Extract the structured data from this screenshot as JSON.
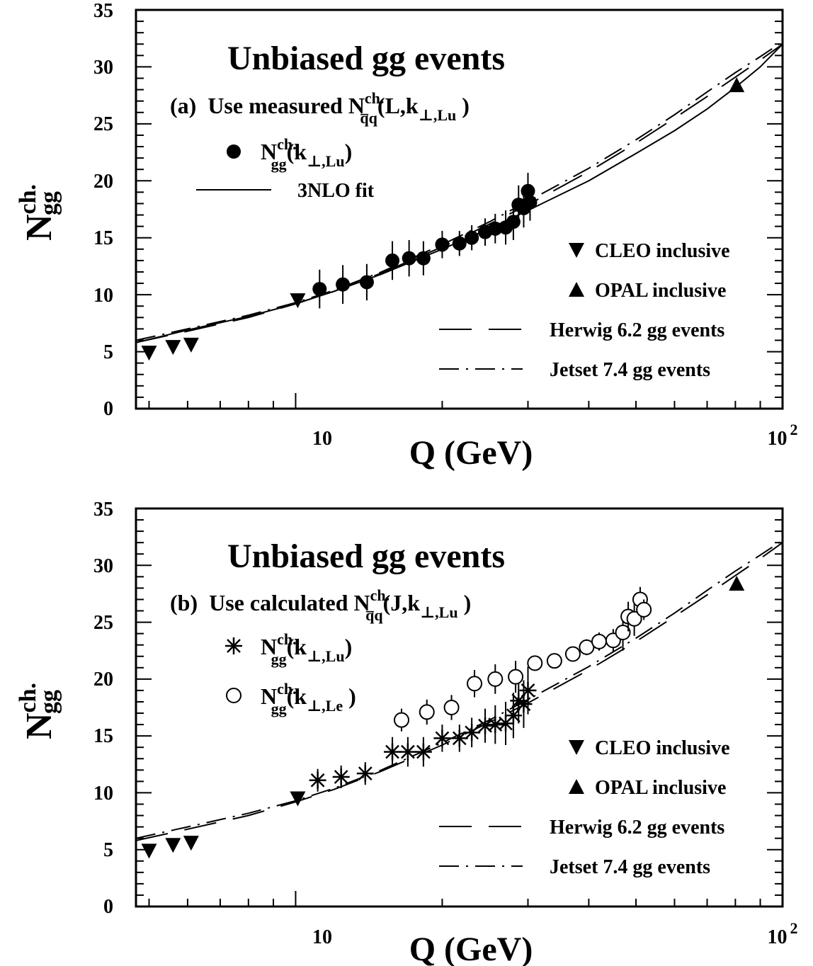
{
  "chart_data": [
    {
      "type": "scatter",
      "panel_label": "(a)",
      "title": "Unbiased gg events",
      "subtitle": {
        "pre": "Use measured N",
        "sup": "ch.",
        "sub": "q̅q",
        "post": "(L,k",
        "sub2": "⊥,Lu",
        "close": " )"
      },
      "xlabel": "Q (GeV)",
      "ylabel": {
        "base": "N",
        "sup": "ch.",
        "sub": "gg"
      },
      "xscale": "log",
      "xlim": [
        4.7,
        100
      ],
      "ylim": [
        0,
        35
      ],
      "x_ticklabels": [
        {
          "x": 10,
          "label": "10"
        },
        {
          "x": 100,
          "label": "10",
          "exp": "2"
        }
      ],
      "y_ticklabels": [
        "0",
        "5",
        "10",
        "15",
        "20",
        "25",
        "30",
        "35"
      ],
      "grid": false,
      "series": [
        {
          "name": "N_gg(k_T,Lu)",
          "marker": "filled-circle",
          "legend": {
            "base": "N",
            "sup": "ch.",
            "sub": "gg",
            "post": "(k",
            "sub2": "⊥,Lu",
            "close": ")"
          },
          "x": [
            11.2,
            12.5,
            14.0,
            15.8,
            17.1,
            18.3,
            20.0,
            21.7,
            23.0,
            24.5,
            25.7,
            27.0,
            28.0,
            28.7,
            29.4,
            30.0,
            30.3
          ],
          "y": [
            10.5,
            10.9,
            11.1,
            13.0,
            13.2,
            13.2,
            14.4,
            14.5,
            15.0,
            15.5,
            15.8,
            15.9,
            16.4,
            17.9,
            17.6,
            19.1,
            18.1
          ],
          "yerr": [
            1.7,
            1.7,
            1.6,
            1.7,
            1.6,
            1.5,
            1.2,
            1.1,
            1.1,
            1.2,
            1.3,
            1.5,
            1.6,
            1.7,
            1.7,
            1.6,
            1.6
          ]
        },
        {
          "name": "CLEO inclusive",
          "marker": "filled-triangle-down",
          "x": [
            5.0,
            5.6,
            6.1,
            10.1
          ],
          "y": [
            4.9,
            5.4,
            5.6,
            9.5
          ]
        },
        {
          "name": "OPAL inclusive",
          "marker": "filled-triangle-up",
          "x": [
            80.5
          ],
          "y": [
            28.4
          ]
        }
      ],
      "curves": [
        {
          "name": "3NLO fit",
          "style": "solid",
          "x": [
            4.7,
            6,
            8,
            10,
            12,
            15,
            20,
            25,
            30,
            40,
            50,
            60,
            70,
            80,
            90,
            100
          ],
          "y": [
            5.8,
            6.9,
            8.1,
            9.2,
            10.3,
            11.8,
            14.0,
            15.8,
            17.4,
            20.0,
            22.4,
            24.4,
            26.3,
            28.2,
            30.0,
            32.0
          ]
        },
        {
          "name": "Herwig 6.2 gg events",
          "style": "dashed",
          "x": [
            4.7,
            6,
            8,
            10,
            12,
            15,
            20,
            25,
            30,
            40,
            50,
            60,
            70,
            80,
            90,
            100
          ],
          "y": [
            5.8,
            6.8,
            8.0,
            9.2,
            10.3,
            11.9,
            14.2,
            16.2,
            17.9,
            20.8,
            23.3,
            25.5,
            27.4,
            29.1,
            30.6,
            32.0
          ]
        },
        {
          "name": "Jetset 7.4 gg events",
          "style": "dash-dot",
          "x": [
            4.7,
            6,
            8,
            10,
            12,
            15,
            20,
            25,
            30,
            40,
            50,
            60,
            70,
            80,
            90,
            100
          ],
          "y": [
            6.0,
            7.0,
            8.2,
            9.3,
            10.4,
            12.0,
            14.4,
            16.4,
            18.2,
            21.1,
            23.6,
            25.8,
            27.8,
            29.5,
            30.9,
            32.2
          ]
        }
      ],
      "legend_entries": [
        "3NLO fit",
        "CLEO inclusive",
        "OPAL inclusive",
        "Herwig 6.2 gg events",
        "Jetset 7.4 gg events"
      ]
    },
    {
      "type": "scatter",
      "panel_label": "(b)",
      "title": "Unbiased gg events",
      "subtitle": {
        "pre": "Use calculated N",
        "sup": "ch.",
        "sub": "q̅q",
        "post": "(J,k",
        "sub2": "⊥,Lu",
        "close": " )"
      },
      "xlabel": "Q (GeV)",
      "ylabel": {
        "base": "N",
        "sup": "ch.",
        "sub": "gg"
      },
      "xscale": "log",
      "xlim": [
        4.7,
        100
      ],
      "ylim": [
        0,
        35
      ],
      "x_ticklabels": [
        {
          "x": 10,
          "label": "10"
        },
        {
          "x": 100,
          "label": "10",
          "exp": "2"
        }
      ],
      "y_ticklabels": [
        "0",
        "5",
        "10",
        "15",
        "20",
        "25",
        "30",
        "35"
      ],
      "grid": false,
      "series": [
        {
          "name": "N_gg(k_T,Lu)",
          "marker": "asterisk",
          "legend": {
            "base": "N",
            "sup": "ch.",
            "sub": "gg",
            "post": "(k",
            "sub2": "⊥,Lu",
            "close": ")"
          },
          "x": [
            11.1,
            12.4,
            13.9,
            15.8,
            17.0,
            18.3,
            20.0,
            21.7,
            23.0,
            24.5,
            25.7,
            27.0,
            28.0,
            28.7,
            29.4,
            30.0
          ],
          "y": [
            11.1,
            11.4,
            11.7,
            13.6,
            13.6,
            13.6,
            14.8,
            14.8,
            15.3,
            15.9,
            16.0,
            16.1,
            16.8,
            18.1,
            17.8,
            19.0
          ],
          "yerr": [
            1.0,
            1.0,
            1.0,
            1.3,
            1.3,
            1.3,
            1.2,
            1.2,
            1.3,
            1.5,
            1.7,
            1.9,
            2.0,
            2.0,
            2.1,
            2.1
          ]
        },
        {
          "name": "N_gg(k_T,Le)",
          "marker": "open-circle",
          "legend": {
            "base": "N",
            "sup": "ch.",
            "sub": "gg",
            "post": "(k",
            "sub2": "⊥,Le",
            "close": " )"
          },
          "x": [
            16.5,
            18.6,
            20.9,
            23.3,
            25.7,
            28.3,
            31.0,
            34.0,
            37.1,
            39.6,
            42.0,
            44.9,
            47.0,
            48.2,
            49.6,
            51.0,
            51.9
          ],
          "y": [
            16.4,
            17.1,
            17.5,
            19.6,
            20.0,
            20.2,
            21.4,
            21.6,
            22.2,
            22.8,
            23.3,
            23.4,
            24.1,
            25.5,
            25.3,
            27.0,
            26.1
          ],
          "yerr": [
            1.0,
            1.1,
            1.1,
            1.2,
            1.3,
            1.4,
            0.6,
            0.6,
            0.6,
            0.7,
            0.8,
            1.0,
            1.6,
            1.3,
            1.5,
            1.1,
            0.9
          ]
        },
        {
          "name": "CLEO inclusive",
          "marker": "filled-triangle-down",
          "x": [
            5.0,
            5.6,
            6.1,
            10.1
          ],
          "y": [
            4.9,
            5.4,
            5.6,
            9.5
          ]
        },
        {
          "name": "OPAL inclusive",
          "marker": "filled-triangle-up",
          "x": [
            80.5
          ],
          "y": [
            28.4
          ]
        }
      ],
      "curves": [
        {
          "name": "Herwig 6.2 gg events",
          "style": "dashed",
          "x": [
            4.7,
            6,
            8,
            10,
            12,
            15,
            20,
            25,
            30,
            40,
            50,
            60,
            70,
            80,
            90,
            100
          ],
          "y": [
            5.8,
            6.8,
            8.0,
            9.2,
            10.3,
            11.9,
            14.2,
            16.2,
            17.9,
            20.8,
            23.3,
            25.5,
            27.4,
            29.1,
            30.6,
            32.0
          ]
        },
        {
          "name": "Jetset 7.4 gg events",
          "style": "dash-dot",
          "x": [
            4.7,
            6,
            8,
            10,
            12,
            15,
            20,
            25,
            30,
            40,
            50,
            60,
            70,
            80,
            90,
            100
          ],
          "y": [
            6.0,
            7.0,
            8.2,
            9.3,
            10.4,
            12.0,
            14.4,
            16.4,
            18.2,
            21.1,
            23.6,
            25.8,
            27.8,
            29.5,
            30.9,
            32.2
          ]
        }
      ],
      "legend_entries": [
        "CLEO inclusive",
        "OPAL inclusive",
        "Herwig 6.2 gg events",
        "Jetset 7.4 gg events"
      ]
    }
  ]
}
